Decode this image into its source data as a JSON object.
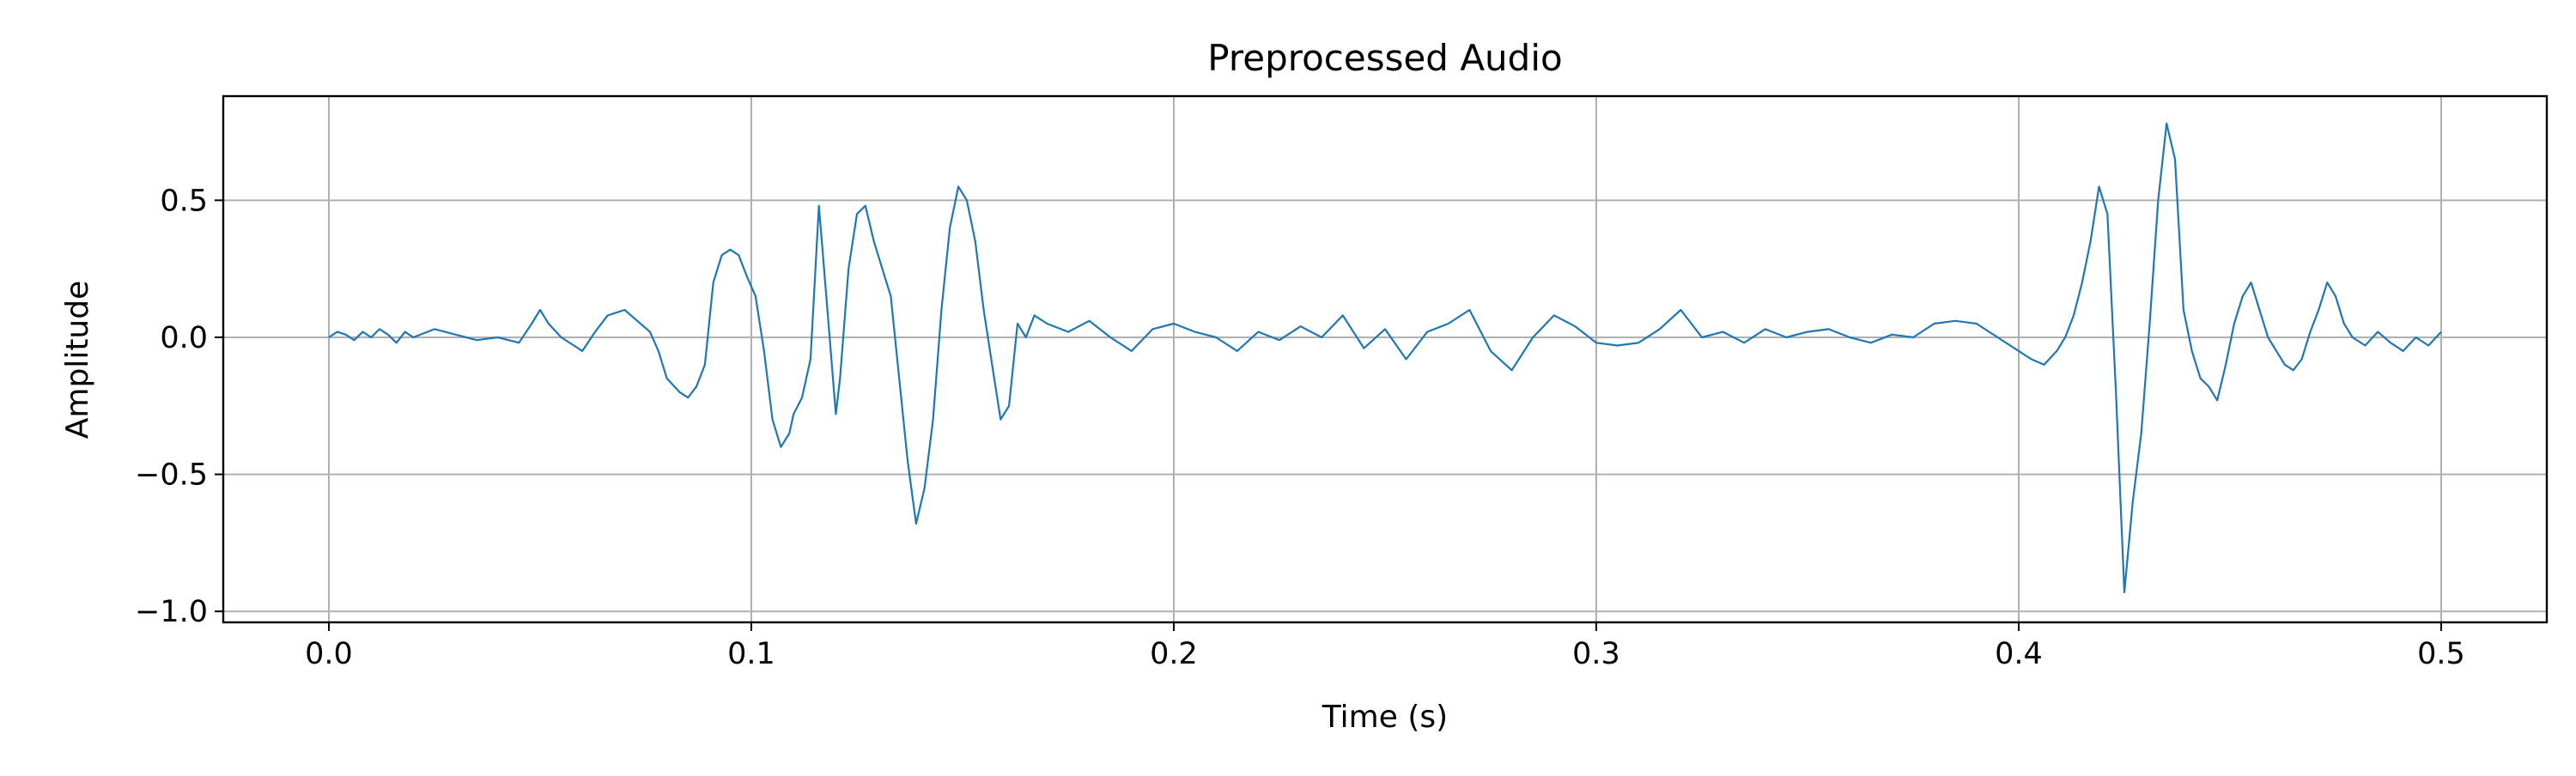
{
  "chart_data": {
    "type": "line",
    "title": "Preprocessed Audio",
    "xlabel": "Time (s)",
    "ylabel": "Amplitude",
    "xlim": [
      -0.025,
      0.525
    ],
    "ylim": [
      -1.04,
      0.88
    ],
    "grid": true,
    "x_ticks": [
      {
        "value": 0.0,
        "label": "0.0"
      },
      {
        "value": 0.1,
        "label": "0.1"
      },
      {
        "value": 0.2,
        "label": "0.2"
      },
      {
        "value": 0.3,
        "label": "0.3"
      },
      {
        "value": 0.4,
        "label": "0.4"
      },
      {
        "value": 0.5,
        "label": "0.5"
      }
    ],
    "y_ticks": [
      {
        "value": 0.5,
        "label": "0.5"
      },
      {
        "value": 0.0,
        "label": "0.0"
      },
      {
        "value": -0.5,
        "label": "−0.5"
      },
      {
        "value": -1.0,
        "label": "−1.0"
      }
    ],
    "series": [
      {
        "color": "#1f77b4",
        "x": [
          0.0,
          0.002,
          0.004,
          0.006,
          0.008,
          0.01,
          0.012,
          0.014,
          0.016,
          0.018,
          0.02,
          0.025,
          0.03,
          0.035,
          0.04,
          0.045,
          0.048,
          0.05,
          0.052,
          0.055,
          0.058,
          0.06,
          0.063,
          0.066,
          0.07,
          0.073,
          0.076,
          0.078,
          0.08,
          0.083,
          0.085,
          0.087,
          0.089,
          0.091,
          0.093,
          0.095,
          0.097,
          0.099,
          0.101,
          0.103,
          0.105,
          0.107,
          0.109,
          0.11,
          0.112,
          0.114,
          0.116,
          0.118,
          0.12,
          0.121,
          0.123,
          0.125,
          0.127,
          0.129,
          0.131,
          0.133,
          0.135,
          0.137,
          0.139,
          0.141,
          0.143,
          0.145,
          0.147,
          0.149,
          0.151,
          0.153,
          0.155,
          0.157,
          0.159,
          0.161,
          0.163,
          0.165,
          0.167,
          0.17,
          0.175,
          0.18,
          0.185,
          0.19,
          0.195,
          0.2,
          0.205,
          0.21,
          0.215,
          0.22,
          0.225,
          0.23,
          0.235,
          0.24,
          0.245,
          0.25,
          0.255,
          0.26,
          0.265,
          0.27,
          0.275,
          0.28,
          0.285,
          0.29,
          0.295,
          0.3,
          0.305,
          0.31,
          0.315,
          0.32,
          0.325,
          0.33,
          0.335,
          0.34,
          0.345,
          0.35,
          0.355,
          0.36,
          0.365,
          0.37,
          0.375,
          0.38,
          0.385,
          0.39,
          0.395,
          0.4,
          0.403,
          0.406,
          0.409,
          0.411,
          0.413,
          0.415,
          0.417,
          0.419,
          0.421,
          0.423,
          0.425,
          0.427,
          0.429,
          0.431,
          0.433,
          0.435,
          0.437,
          0.439,
          0.441,
          0.443,
          0.445,
          0.447,
          0.449,
          0.451,
          0.453,
          0.455,
          0.457,
          0.459,
          0.461,
          0.463,
          0.465,
          0.467,
          0.469,
          0.471,
          0.473,
          0.475,
          0.477,
          0.479,
          0.482,
          0.485,
          0.488,
          0.491,
          0.494,
          0.497,
          0.5
        ],
        "y": [
          0.0,
          0.02,
          0.01,
          -0.01,
          0.02,
          0.0,
          0.03,
          0.01,
          -0.02,
          0.02,
          0.0,
          0.03,
          0.01,
          -0.01,
          0.0,
          -0.02,
          0.05,
          0.1,
          0.05,
          0.0,
          -0.03,
          -0.05,
          0.02,
          0.08,
          0.1,
          0.06,
          0.02,
          -0.05,
          -0.15,
          -0.2,
          -0.22,
          -0.18,
          -0.1,
          0.2,
          0.3,
          0.32,
          0.3,
          0.22,
          0.15,
          -0.05,
          -0.3,
          -0.4,
          -0.35,
          -0.28,
          -0.22,
          -0.08,
          0.48,
          0.1,
          -0.28,
          -0.15,
          0.25,
          0.45,
          0.48,
          0.35,
          0.25,
          0.15,
          -0.15,
          -0.45,
          -0.68,
          -0.55,
          -0.3,
          0.1,
          0.4,
          0.55,
          0.5,
          0.35,
          0.1,
          -0.1,
          -0.3,
          -0.25,
          0.05,
          0.0,
          0.08,
          0.05,
          0.02,
          0.06,
          0.0,
          -0.05,
          0.03,
          0.05,
          0.02,
          0.0,
          -0.05,
          0.02,
          -0.01,
          0.04,
          0.0,
          0.08,
          -0.04,
          0.03,
          -0.08,
          0.02,
          0.05,
          0.1,
          -0.05,
          -0.12,
          0.0,
          0.08,
          0.04,
          -0.02,
          -0.03,
          -0.02,
          0.03,
          0.1,
          0.0,
          0.02,
          -0.02,
          0.03,
          0.0,
          0.02,
          0.03,
          0.0,
          -0.02,
          0.01,
          0.0,
          0.05,
          0.06,
          0.05,
          0.0,
          -0.05,
          -0.08,
          -0.1,
          -0.05,
          0.0,
          0.08,
          0.2,
          0.35,
          0.55,
          0.45,
          -0.2,
          -0.93,
          -0.6,
          -0.35,
          0.05,
          0.5,
          0.78,
          0.65,
          0.1,
          -0.05,
          -0.15,
          -0.18,
          -0.23,
          -0.1,
          0.05,
          0.15,
          0.2,
          0.1,
          0.0,
          -0.05,
          -0.1,
          -0.12,
          -0.08,
          0.02,
          0.1,
          0.2,
          0.15,
          0.05,
          0.0,
          -0.03,
          0.02,
          -0.02,
          -0.05,
          0.0,
          -0.03,
          0.02
        ]
      }
    ]
  }
}
